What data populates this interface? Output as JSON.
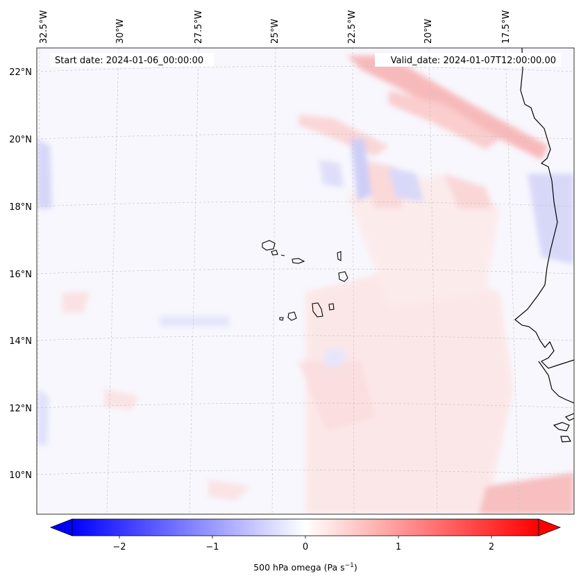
{
  "map": {
    "header": {
      "start_date": "Start date: 2024-01-06_00:00:00",
      "valid_date": "Valid_date: 2024-01-07T12:00:00.00"
    },
    "lon_labels": [
      "32.5°W",
      "30°W",
      "27.5°W",
      "25°W",
      "22.5°W",
      "20°W",
      "17.5°W"
    ],
    "lat_labels": [
      "22°N",
      "20°N",
      "18°N",
      "16°N",
      "14°N",
      "12°N",
      "10°N"
    ],
    "extent": {
      "lon_min": -32.8,
      "lon_max": -15.1,
      "lat_min": 8.9,
      "lat_max": 22.8
    },
    "gridlines": true,
    "field_name": "500 hPa omega",
    "colormap": {
      "negative": "#0000ff",
      "zero": "#ffffff",
      "positive": "#ff0000"
    }
  },
  "colorbar": {
    "label": "500 hPa omega (Pa s",
    "label_sup": "−1",
    "label_end": ")",
    "ticks": [
      "−2",
      "−1",
      "0",
      "1",
      "2"
    ],
    "range": [
      -2.75,
      2.75
    ],
    "extend": "both"
  }
}
